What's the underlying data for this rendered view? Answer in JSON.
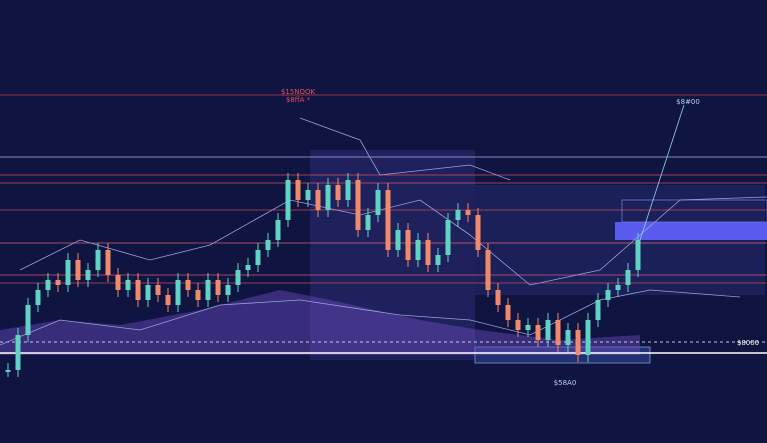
{
  "chart_data": {
    "type": "candlestick",
    "annotations": [
      "$15NOOK",
      "$8ffA *",
      "$8#00",
      "$58A0",
      "$8000"
    ],
    "values": [
      5,
      22.5,
      37.5,
      45,
      50,
      47.5,
      60,
      50,
      55,
      65,
      52.5,
      45,
      50,
      40,
      47.5,
      42.5,
      37.5,
      50,
      45,
      40,
      50,
      42.5,
      47.5,
      55,
      57.5,
      65,
      70,
      80,
      100,
      90,
      95,
      85,
      97.5,
      90,
      100,
      75,
      82.5,
      95,
      65,
      75,
      60,
      70,
      57.5,
      62.5,
      80,
      85,
      82.5,
      65,
      45,
      37.5,
      30,
      25,
      27.5,
      20,
      30,
      17.5,
      25,
      12.5,
      30,
      40,
      45,
      47.5,
      55,
      70
    ],
    "ylim": [
      0,
      110
    ],
    "up_color": "#5fd3c4",
    "down_color": "#f08a6a"
  }
}
